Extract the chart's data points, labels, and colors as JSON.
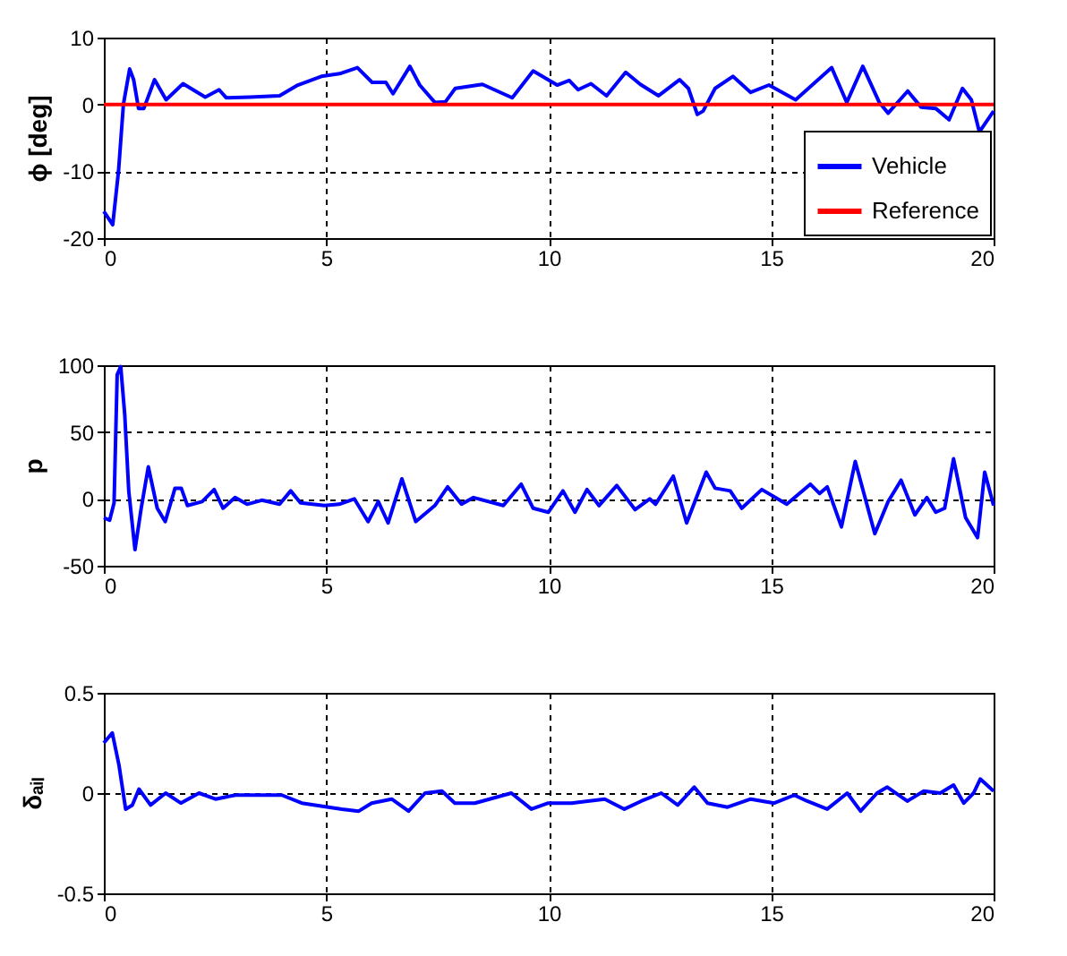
{
  "chart_data": [
    {
      "type": "line",
      "ylabel": "ϕ [deg]",
      "xlim": [
        0,
        20
      ],
      "xticks": [
        0,
        5,
        10,
        15,
        20
      ],
      "ylim": [
        -20,
        10
      ],
      "yticks": [
        -20,
        -10,
        0,
        10
      ],
      "grid": true,
      "legend": "bottom right",
      "series": [
        {
          "name": "Vehicle",
          "color": "#0000ff",
          "x": [
            0,
            0.2,
            0.33,
            0.44,
            0.58,
            0.67,
            0.78,
            0.9,
            1.14,
            1.4,
            1.78,
            2.28,
            2.59,
            2.75,
            3.28,
            3.95,
            4.36,
            4.89,
            5.3,
            5.7,
            6.03,
            6.34,
            6.5,
            6.88,
            7.1,
            7.44,
            7.68,
            7.9,
            8.51,
            9.18,
            9.65,
            10.19,
            10.46,
            10.66,
            10.95,
            11.3,
            11.73,
            12.06,
            12.47,
            12.94,
            13.14,
            13.34,
            13.47,
            13.74,
            14.14,
            14.54,
            14.95,
            15.55,
            16.36,
            16.7,
            17.06,
            17.43,
            17.63,
            18.07,
            18.37,
            18.7,
            19,
            19.3,
            19.5,
            19.68,
            20
          ],
          "values": [
            -16,
            -18,
            -10,
            0,
            5.3,
            3.7,
            -0.6,
            -0.6,
            3.7,
            0.7,
            3.1,
            1.1,
            2.2,
            1,
            1.1,
            1.3,
            2.9,
            4.2,
            4.6,
            5.5,
            3.3,
            3.3,
            1.6,
            5.7,
            2.9,
            0.3,
            0.4,
            2.4,
            3,
            1,
            5,
            2.9,
            3.6,
            2.2,
            3.1,
            1.3,
            4.8,
            3,
            1.3,
            3.7,
            2.4,
            -1.5,
            -1,
            2.4,
            4.2,
            1.8,
            2.9,
            0.7,
            5.5,
            0.3,
            5.7,
            0.3,
            -1.3,
            2,
            -0.4,
            -0.6,
            -2.3,
            2.4,
            0.7,
            -4.1,
            -1
          ]
        },
        {
          "name": "Reference",
          "color": "#ff0000",
          "x": [
            0,
            20
          ],
          "values": [
            0,
            0
          ]
        }
      ]
    },
    {
      "type": "line",
      "ylabel": "p",
      "xlim": [
        0,
        20
      ],
      "xticks": [
        0,
        5,
        10,
        15,
        20
      ],
      "ylim": [
        -50,
        100
      ],
      "yticks": [
        -50,
        0,
        50,
        100
      ],
      "grid": true,
      "series": [
        {
          "color": "#0000ff",
          "x": [
            0,
            0.13,
            0.23,
            0.3,
            0.38,
            0.47,
            0.56,
            0.7,
            0.84,
            1,
            1.2,
            1.38,
            1.6,
            1.74,
            1.88,
            2.21,
            2.48,
            2.68,
            2.95,
            3.22,
            3.55,
            3.95,
            4.2,
            4.42,
            4.96,
            5.29,
            5.63,
            5.94,
            6.17,
            6.39,
            6.7,
            7.01,
            7.44,
            7.73,
            8.04,
            8.31,
            8.98,
            9.38,
            9.65,
            9.99,
            10.32,
            10.59,
            10.86,
            11.13,
            11.53,
            11.94,
            12.27,
            12.4,
            12.8,
            13.1,
            13.54,
            13.74,
            14.08,
            14.34,
            14.79,
            15.35,
            15.88,
            16.09,
            16.26,
            16.58,
            16.89,
            17.33,
            17.63,
            17.92,
            18.23,
            18.5,
            18.7,
            18.9,
            19.1,
            19.37,
            19.64,
            19.8,
            20
          ],
          "values": [
            -14,
            -16,
            -3,
            93,
            99,
            63,
            6,
            -38,
            -7,
            24,
            -7,
            -17,
            8,
            8,
            -5,
            -2,
            7,
            -7,
            1,
            -4,
            -1,
            -4,
            6,
            -3,
            -5,
            -4,
            0,
            -17,
            -2,
            -18,
            15,
            -17,
            -5,
            9,
            -4,
            1,
            -5,
            11,
            -7,
            -10,
            6,
            -10,
            7,
            -5,
            10,
            -8,
            0,
            -4,
            17,
            -18,
            20,
            8,
            6,
            -7,
            7,
            -4,
            11,
            4,
            9,
            -21,
            28,
            -26,
            -2,
            14,
            -12,
            1,
            -10,
            -7,
            30,
            -14,
            -29,
            20,
            -5
          ]
        }
      ]
    },
    {
      "type": "line",
      "ylabel": "δₐᵢₗ",
      "xlim": [
        0,
        20
      ],
      "xticks": [
        0,
        5,
        10,
        15,
        20
      ],
      "ylim": [
        -0.5,
        0.5
      ],
      "yticks": [
        -0.5,
        0,
        0.5
      ],
      "grid": true,
      "series": [
        {
          "color": "#0000ff",
          "x": [
            0,
            0.19,
            0.34,
            0.49,
            0.64,
            0.79,
            1.05,
            1.39,
            1.73,
            2.14,
            2.51,
            2.96,
            4,
            4.45,
            5.35,
            5.73,
            6.02,
            6.47,
            6.85,
            7.22,
            7.6,
            7.89,
            8.34,
            9.16,
            9.61,
            9.99,
            10.51,
            10.88,
            11.26,
            11.7,
            12.08,
            12.53,
            12.9,
            13.27,
            13.57,
            14.02,
            14.54,
            15.07,
            15.52,
            15.81,
            16.26,
            16.71,
            17.01,
            17.38,
            17.61,
            18.06,
            18.43,
            18.8,
            19.1,
            19.33,
            19.55,
            19.7,
            20
          ],
          "values": [
            0.25,
            0.3,
            0.14,
            -0.08,
            -0.06,
            0.02,
            -0.06,
            0,
            -0.05,
            0,
            -0.03,
            -0.01,
            -0.01,
            -0.05,
            -0.08,
            -0.09,
            -0.05,
            -0.03,
            -0.09,
            0,
            0.01,
            -0.05,
            -0.05,
            0,
            -0.08,
            -0.05,
            -0.05,
            -0.04,
            -0.03,
            -0.08,
            -0.04,
            0,
            -0.06,
            0.03,
            -0.05,
            -0.07,
            -0.03,
            -0.05,
            -0.01,
            -0.04,
            -0.08,
            0,
            -0.09,
            0,
            0.03,
            -0.04,
            0.01,
            0,
            0.04,
            -0.05,
            0,
            0.07,
            0.01
          ]
        }
      ]
    }
  ]
}
